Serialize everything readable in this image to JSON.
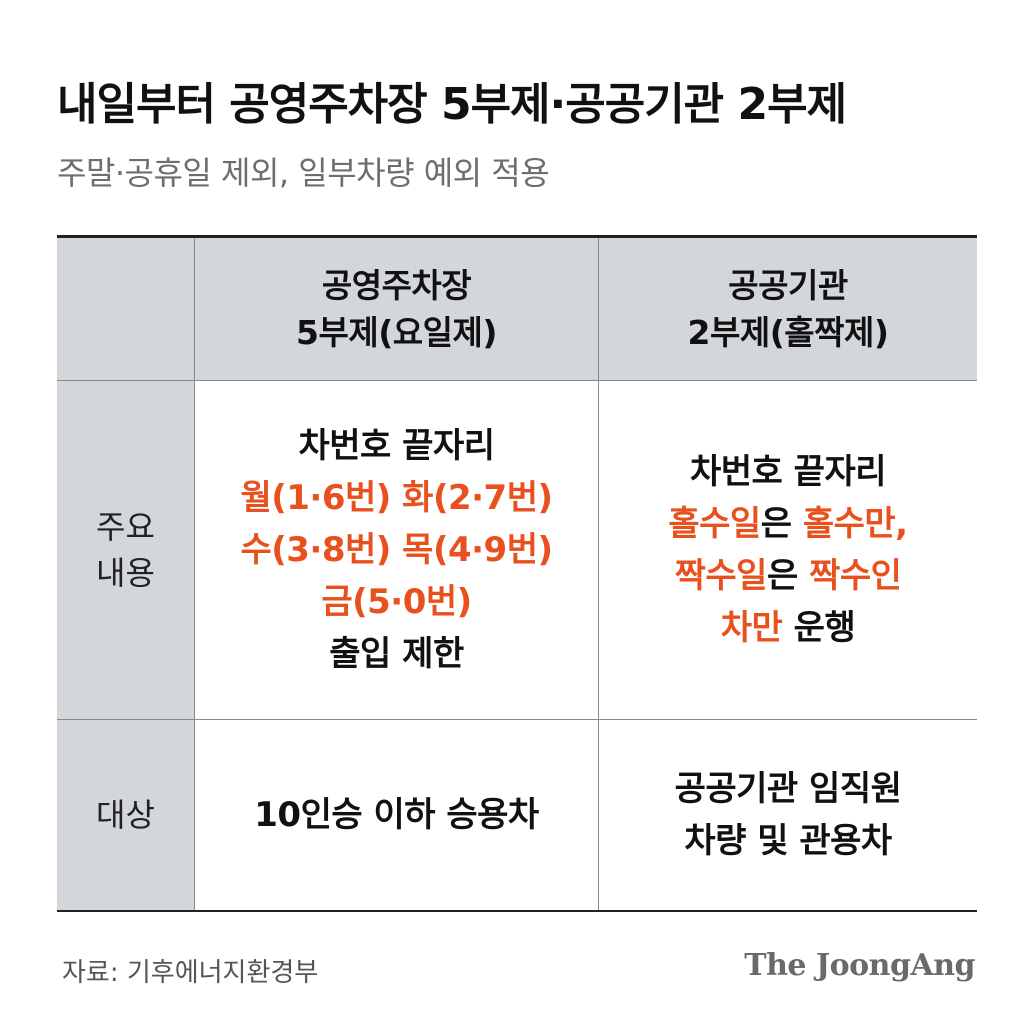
{
  "header": {
    "title": "내일부터 공영주차장 5부제·공공기관 2부제",
    "subtitle": "주말·공휴일 제외, 일부차량 예외 적용"
  },
  "table": {
    "columns": [
      {
        "line1": "공영주차장",
        "line2": "5부제(요일제)"
      },
      {
        "line1": "공공기관",
        "line2": "2부제(홀짝제)"
      }
    ],
    "rows": {
      "main": {
        "label_line1": "주요",
        "label_line2": "내용",
        "col_a": {
          "line1": "차번호 끝자리",
          "line2": "월(1·6번) 화(2·7번)",
          "line3": "수(3·8번) 목(4·9번)",
          "line4": "금(5·0번)",
          "line5": "출입 제한"
        },
        "col_b": {
          "line1": "차번호 끝자리",
          "line2_hl1": "홀수일",
          "line2_mid": "은 ",
          "line2_hl2": "홀수만,",
          "line3_hl1": "짝수일",
          "line3_mid": "은 ",
          "line3_hl2": "짝수인",
          "line4_hl": "차만",
          "line4_rest": " 운행"
        }
      },
      "target": {
        "label": "대상",
        "col_a": "10인승 이하 승용차",
        "col_b_line1": "공공기관 임직원",
        "col_b_line2": "차량 및 관용차"
      }
    }
  },
  "footer": {
    "source": "자료: 기후에너지환경부",
    "logo": "The JoongAng"
  },
  "colors": {
    "accent": "#e8501e",
    "header_bg": "#d3d7db",
    "text": "#111111"
  }
}
